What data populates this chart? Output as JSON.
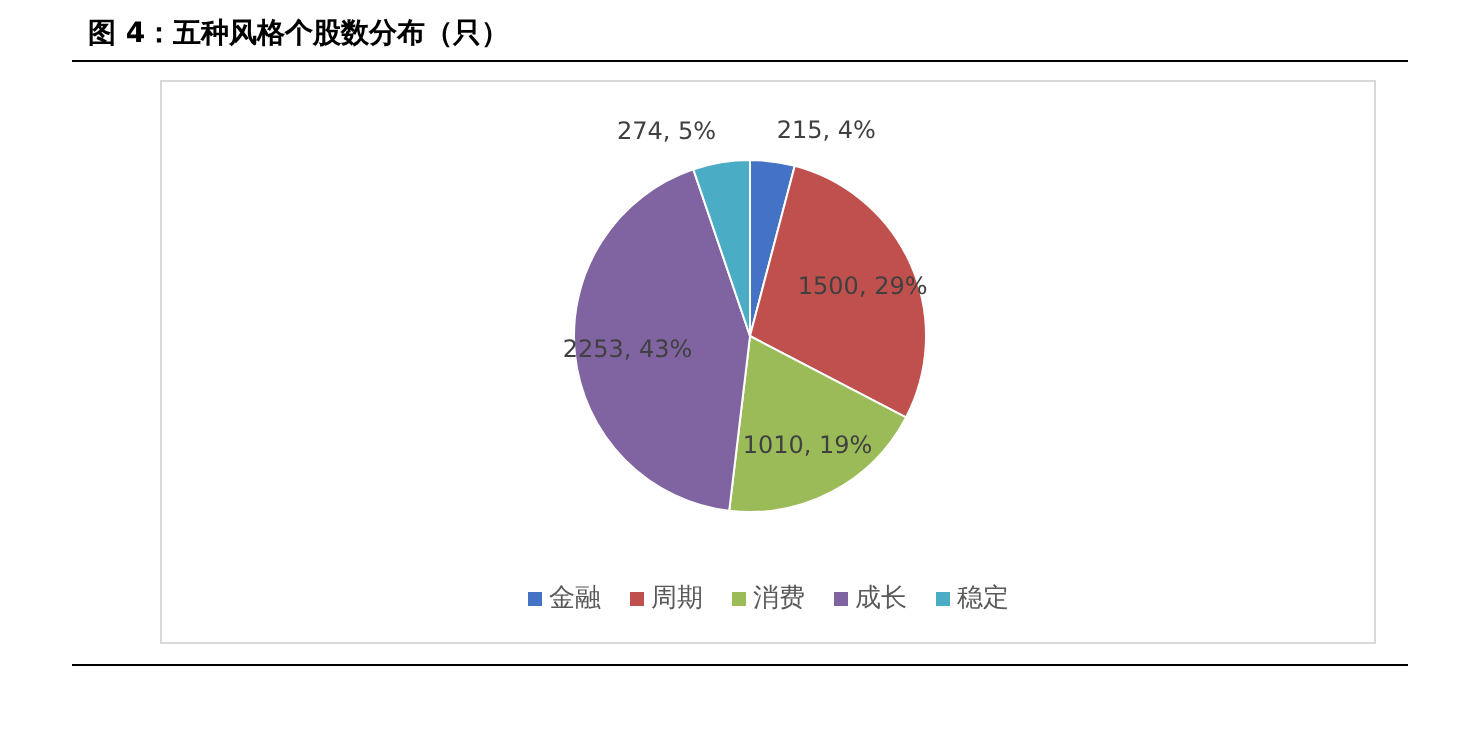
{
  "chart_data": {
    "type": "pie",
    "title": "图 4：五种风格个股数分布（只）",
    "categories": [
      "金融",
      "周期",
      "消费",
      "成长",
      "稳定"
    ],
    "values": [
      215,
      1500,
      1010,
      2253,
      274
    ],
    "colors": [
      "#4472c4",
      "#c0504d",
      "#9bbb59",
      "#8064a2",
      "#4bacc6"
    ],
    "value_labels": [
      "215, 4%",
      "1500, 29%",
      "1010, 19%",
      "2253, 43%",
      "274, 5%"
    ],
    "legend": "bottom"
  }
}
